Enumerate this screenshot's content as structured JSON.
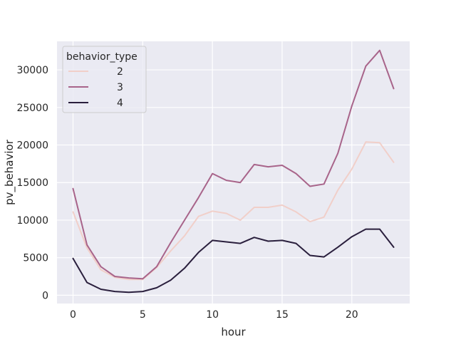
{
  "chart_data": {
    "type": "line",
    "xlabel": "hour",
    "ylabel": "pv_behavior",
    "xlim": [
      -1.15,
      24.15
    ],
    "ylim": [
      -1100,
      33800
    ],
    "xticks": [
      0,
      5,
      10,
      15,
      20
    ],
    "yticks": [
      0,
      5000,
      10000,
      15000,
      20000,
      25000,
      30000
    ],
    "grid": true,
    "legend": {
      "title": "behavior_type",
      "placement": "top-left"
    },
    "x": [
      0,
      1,
      2,
      3,
      4,
      5,
      6,
      7,
      8,
      9,
      10,
      11,
      12,
      13,
      14,
      15,
      16,
      17,
      18,
      19,
      20,
      21,
      22,
      23
    ],
    "series": [
      {
        "name": "2",
        "color": "#f1cfc9",
        "values": [
          11100,
          6300,
          3400,
          2400,
          2100,
          2100,
          3700,
          5900,
          7900,
          10500,
          11200,
          10900,
          10000,
          11700,
          11700,
          12000,
          11100,
          9800,
          10400,
          14000,
          16800,
          20400,
          20300,
          17700
        ]
      },
      {
        "name": "3",
        "color": "#a8648a",
        "values": [
          14200,
          6700,
          3800,
          2500,
          2300,
          2200,
          3800,
          7000,
          10000,
          13000,
          16200,
          15300,
          15000,
          17400,
          17100,
          17300,
          16200,
          14500,
          14800,
          18900,
          25200,
          30500,
          32600,
          27500
        ]
      },
      {
        "name": "4",
        "color": "#2a1f3d",
        "values": [
          4900,
          1700,
          800,
          500,
          400,
          500,
          1000,
          2000,
          3600,
          5700,
          7300,
          7100,
          6900,
          7700,
          7200,
          7300,
          6900,
          5300,
          5100,
          6400,
          7800,
          8800,
          8800,
          6400
        ]
      }
    ]
  }
}
